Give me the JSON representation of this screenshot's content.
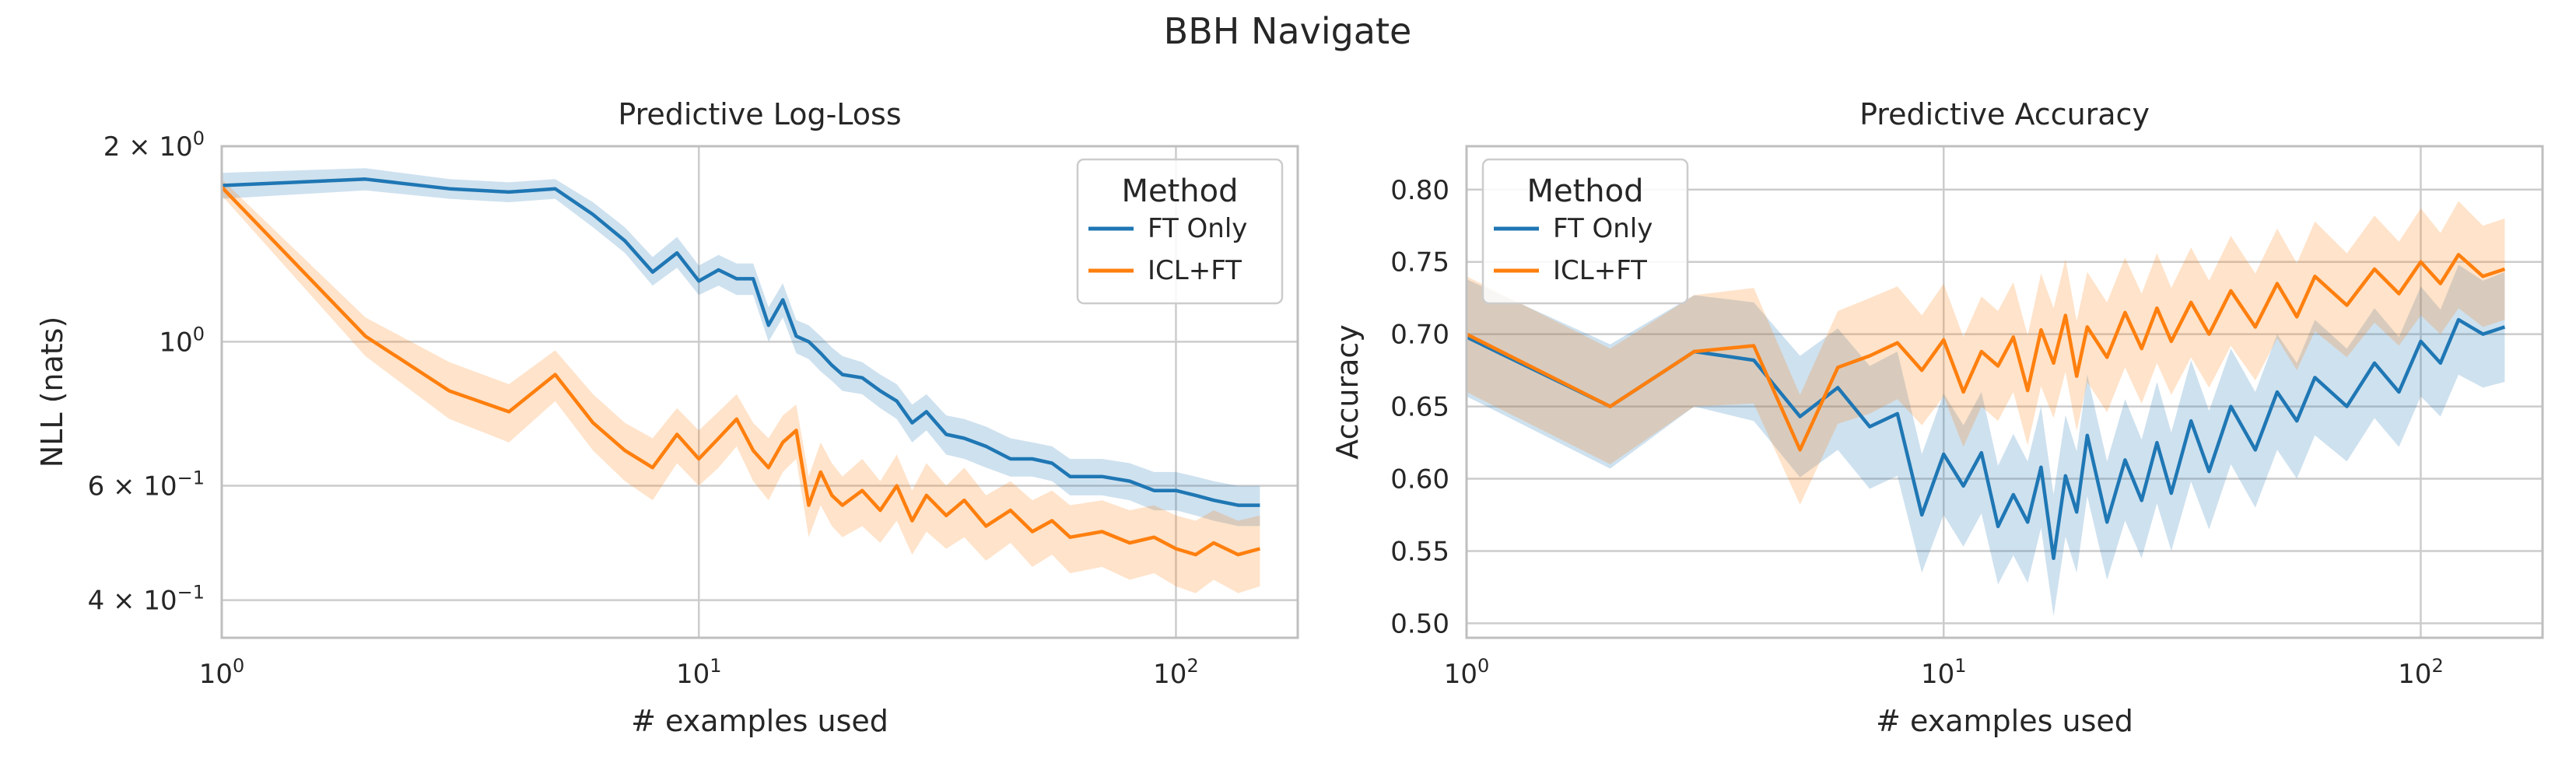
{
  "figure": {
    "suptitle": "BBH Navigate"
  },
  "colors": {
    "ft_only": "#1f77b4",
    "icl_ft": "#ff7f0e",
    "grid": "#cccccc",
    "frame": "#bfbfbf",
    "background": "#ffffff"
  },
  "chart_data": [
    {
      "type": "line",
      "title": "Predictive Log-Loss",
      "xlabel": "# examples used",
      "ylabel": "NLL (nats)",
      "x_scale": "log",
      "y_scale": "log",
      "xlim": [
        1,
        180
      ],
      "ylim": [
        0.35,
        2.0
      ],
      "x_ticks": [
        1,
        10,
        100
      ],
      "x_tick_labels": [
        {
          "base": "10",
          "exp": "0"
        },
        {
          "base": "10",
          "exp": "1"
        },
        {
          "base": "10",
          "exp": "2"
        }
      ],
      "y_ticks": [
        2.0,
        1.0,
        0.6,
        0.4
      ],
      "y_tick_labels": [
        {
          "mant": "2 × ",
          "base": "10",
          "exp": "0"
        },
        {
          "mant": "",
          "base": "10",
          "exp": "0"
        },
        {
          "mant": "6 × ",
          "base": "10",
          "exp": "−1"
        },
        {
          "mant": "4 × ",
          "base": "10",
          "exp": "−1"
        }
      ],
      "grid": true,
      "legend": {
        "title": "Method",
        "position": "top-right",
        "entries": [
          "FT Only",
          "ICL+FT"
        ]
      },
      "series": [
        {
          "name": "FT Only",
          "color_key": "ft_only",
          "x": [
            1,
            2,
            3,
            4,
            5,
            6,
            7,
            8,
            9,
            10,
            11,
            12,
            13,
            14,
            15,
            16,
            17,
            18,
            19,
            20,
            22,
            24,
            26,
            28,
            30,
            33,
            36,
            40,
            45,
            50,
            55,
            60,
            70,
            80,
            90,
            100,
            110,
            120,
            135,
            150
          ],
          "y": [
            1.74,
            1.78,
            1.72,
            1.7,
            1.72,
            1.57,
            1.43,
            1.28,
            1.37,
            1.24,
            1.29,
            1.25,
            1.25,
            1.06,
            1.16,
            1.02,
            1.0,
            0.96,
            0.92,
            0.89,
            0.88,
            0.84,
            0.81,
            0.75,
            0.78,
            0.72,
            0.71,
            0.69,
            0.66,
            0.66,
            0.65,
            0.62,
            0.62,
            0.61,
            0.59,
            0.59,
            0.58,
            0.57,
            0.56,
            0.56
          ],
          "lower": [
            1.66,
            1.71,
            1.66,
            1.64,
            1.66,
            1.5,
            1.37,
            1.22,
            1.3,
            1.18,
            1.22,
            1.18,
            1.18,
            1.0,
            1.09,
            0.96,
            0.94,
            0.9,
            0.87,
            0.84,
            0.83,
            0.79,
            0.76,
            0.7,
            0.73,
            0.67,
            0.66,
            0.64,
            0.62,
            0.62,
            0.61,
            0.58,
            0.58,
            0.57,
            0.55,
            0.55,
            0.54,
            0.53,
            0.52,
            0.52
          ],
          "upper": [
            1.82,
            1.85,
            1.78,
            1.76,
            1.78,
            1.64,
            1.5,
            1.35,
            1.45,
            1.31,
            1.36,
            1.32,
            1.32,
            1.13,
            1.23,
            1.08,
            1.06,
            1.02,
            0.98,
            0.95,
            0.93,
            0.89,
            0.86,
            0.8,
            0.83,
            0.77,
            0.76,
            0.74,
            0.71,
            0.7,
            0.69,
            0.66,
            0.66,
            0.65,
            0.63,
            0.63,
            0.62,
            0.61,
            0.6,
            0.6
          ]
        },
        {
          "name": "ICL+FT",
          "color_key": "icl_ft",
          "x": [
            1,
            2,
            3,
            4,
            5,
            6,
            7,
            8,
            9,
            10,
            11,
            12,
            13,
            14,
            15,
            16,
            17,
            18,
            19,
            20,
            22,
            24,
            26,
            28,
            30,
            33,
            36,
            40,
            45,
            50,
            55,
            60,
            70,
            80,
            90,
            100,
            110,
            120,
            135,
            150
          ],
          "y": [
            1.73,
            1.02,
            0.84,
            0.78,
            0.89,
            0.75,
            0.68,
            0.64,
            0.72,
            0.66,
            0.71,
            0.76,
            0.68,
            0.64,
            0.7,
            0.73,
            0.56,
            0.63,
            0.58,
            0.56,
            0.59,
            0.55,
            0.6,
            0.53,
            0.58,
            0.54,
            0.57,
            0.52,
            0.55,
            0.51,
            0.53,
            0.5,
            0.51,
            0.49,
            0.5,
            0.48,
            0.47,
            0.49,
            0.47,
            0.48
          ],
          "lower": [
            1.68,
            0.95,
            0.76,
            0.7,
            0.81,
            0.68,
            0.61,
            0.57,
            0.65,
            0.6,
            0.64,
            0.69,
            0.61,
            0.57,
            0.63,
            0.66,
            0.5,
            0.56,
            0.52,
            0.5,
            0.52,
            0.49,
            0.53,
            0.47,
            0.51,
            0.48,
            0.5,
            0.46,
            0.49,
            0.45,
            0.47,
            0.44,
            0.45,
            0.43,
            0.44,
            0.42,
            0.41,
            0.43,
            0.41,
            0.42
          ],
          "upper": [
            1.78,
            1.09,
            0.93,
            0.86,
            0.97,
            0.83,
            0.75,
            0.71,
            0.79,
            0.73,
            0.78,
            0.83,
            0.75,
            0.71,
            0.77,
            0.8,
            0.62,
            0.7,
            0.65,
            0.62,
            0.66,
            0.61,
            0.67,
            0.59,
            0.65,
            0.6,
            0.64,
            0.58,
            0.61,
            0.57,
            0.59,
            0.56,
            0.57,
            0.55,
            0.56,
            0.54,
            0.53,
            0.55,
            0.53,
            0.54
          ]
        }
      ]
    },
    {
      "type": "line",
      "title": "Predictive Accuracy",
      "xlabel": "# examples used",
      "ylabel": "Accuracy",
      "x_scale": "log",
      "y_scale": "linear",
      "xlim": [
        1,
        180
      ],
      "ylim": [
        0.49,
        0.83
      ],
      "x_ticks": [
        1,
        10,
        100
      ],
      "x_tick_labels": [
        {
          "base": "10",
          "exp": "0"
        },
        {
          "base": "10",
          "exp": "1"
        },
        {
          "base": "10",
          "exp": "2"
        }
      ],
      "y_ticks": [
        0.5,
        0.55,
        0.6,
        0.65,
        0.7,
        0.75,
        0.8
      ],
      "y_tick_labels": [
        "0.50",
        "0.55",
        "0.60",
        "0.65",
        "0.70",
        "0.75",
        "0.80"
      ],
      "grid": true,
      "legend": {
        "title": "Method",
        "position": "top-left",
        "entries": [
          "FT Only",
          "ICL+FT"
        ]
      },
      "series": [
        {
          "name": "FT Only",
          "color_key": "ft_only",
          "x": [
            1,
            2,
            3,
            4,
            5,
            6,
            7,
            8,
            9,
            10,
            11,
            12,
            13,
            14,
            15,
            16,
            17,
            18,
            19,
            20,
            22,
            24,
            26,
            28,
            30,
            33,
            36,
            40,
            45,
            50,
            55,
            60,
            70,
            80,
            90,
            100,
            110,
            120,
            135,
            150
          ],
          "y": [
            0.698,
            0.65,
            0.688,
            0.682,
            0.643,
            0.663,
            0.636,
            0.645,
            0.575,
            0.617,
            0.595,
            0.618,
            0.567,
            0.589,
            0.57,
            0.608,
            0.545,
            0.602,
            0.577,
            0.63,
            0.57,
            0.613,
            0.585,
            0.625,
            0.59,
            0.64,
            0.605,
            0.65,
            0.62,
            0.66,
            0.64,
            0.67,
            0.65,
            0.68,
            0.66,
            0.695,
            0.68,
            0.71,
            0.7,
            0.705
          ],
          "lower": [
            0.657,
            0.607,
            0.65,
            0.64,
            0.601,
            0.62,
            0.593,
            0.602,
            0.535,
            0.575,
            0.553,
            0.576,
            0.527,
            0.547,
            0.528,
            0.566,
            0.505,
            0.56,
            0.535,
            0.588,
            0.53,
            0.571,
            0.545,
            0.583,
            0.55,
            0.598,
            0.565,
            0.61,
            0.58,
            0.62,
            0.6,
            0.63,
            0.612,
            0.642,
            0.622,
            0.657,
            0.643,
            0.672,
            0.663,
            0.667
          ],
          "upper": [
            0.738,
            0.693,
            0.727,
            0.722,
            0.685,
            0.704,
            0.678,
            0.688,
            0.617,
            0.659,
            0.637,
            0.66,
            0.609,
            0.631,
            0.612,
            0.65,
            0.589,
            0.644,
            0.619,
            0.672,
            0.612,
            0.655,
            0.627,
            0.667,
            0.632,
            0.682,
            0.647,
            0.69,
            0.66,
            0.7,
            0.68,
            0.71,
            0.69,
            0.718,
            0.698,
            0.733,
            0.717,
            0.748,
            0.737,
            0.743
          ]
        },
        {
          "name": "ICL+FT",
          "color_key": "icl_ft",
          "x": [
            1,
            2,
            3,
            4,
            5,
            6,
            7,
            8,
            9,
            10,
            11,
            12,
            13,
            14,
            15,
            16,
            17,
            18,
            19,
            20,
            22,
            24,
            26,
            28,
            30,
            33,
            36,
            40,
            45,
            50,
            55,
            60,
            70,
            80,
            90,
            100,
            110,
            120,
            135,
            150
          ],
          "y": [
            0.7,
            0.65,
            0.688,
            0.692,
            0.62,
            0.677,
            0.685,
            0.694,
            0.675,
            0.696,
            0.66,
            0.688,
            0.678,
            0.698,
            0.661,
            0.703,
            0.68,
            0.713,
            0.671,
            0.705,
            0.684,
            0.715,
            0.69,
            0.718,
            0.695,
            0.722,
            0.7,
            0.73,
            0.705,
            0.735,
            0.712,
            0.74,
            0.72,
            0.745,
            0.728,
            0.75,
            0.735,
            0.755,
            0.74,
            0.745
          ],
          "lower": [
            0.66,
            0.61,
            0.65,
            0.652,
            0.582,
            0.638,
            0.645,
            0.655,
            0.637,
            0.657,
            0.622,
            0.65,
            0.64,
            0.66,
            0.623,
            0.664,
            0.642,
            0.674,
            0.633,
            0.667,
            0.646,
            0.677,
            0.652,
            0.68,
            0.658,
            0.684,
            0.663,
            0.692,
            0.668,
            0.697,
            0.675,
            0.702,
            0.684,
            0.708,
            0.692,
            0.713,
            0.7,
            0.718,
            0.705,
            0.71
          ],
          "upper": [
            0.74,
            0.69,
            0.727,
            0.732,
            0.658,
            0.716,
            0.725,
            0.733,
            0.713,
            0.735,
            0.698,
            0.726,
            0.716,
            0.736,
            0.699,
            0.742,
            0.718,
            0.752,
            0.709,
            0.743,
            0.722,
            0.753,
            0.728,
            0.756,
            0.732,
            0.76,
            0.737,
            0.768,
            0.742,
            0.773,
            0.749,
            0.778,
            0.756,
            0.782,
            0.764,
            0.787,
            0.77,
            0.792,
            0.775,
            0.78
          ]
        }
      ]
    }
  ]
}
